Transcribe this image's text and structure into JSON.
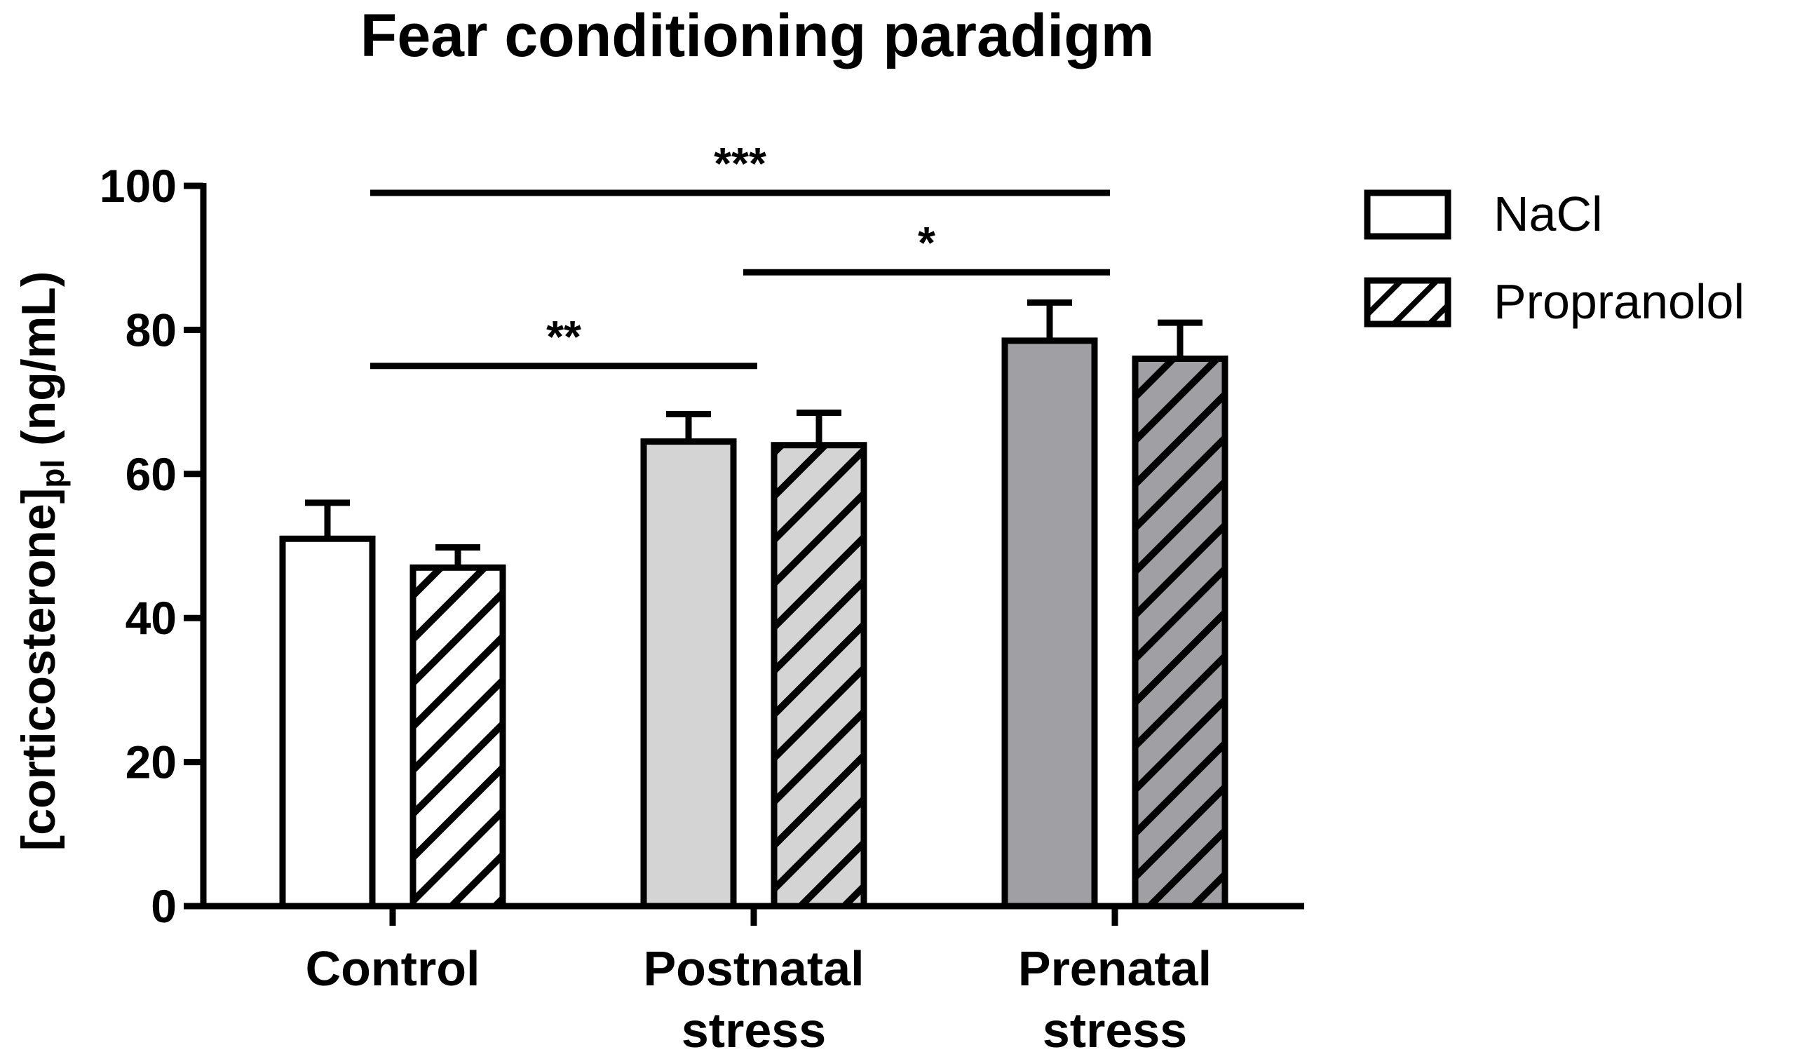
{
  "chart_data": {
    "type": "bar",
    "title": "Fear conditioning paradigm",
    "ylabel_main": "[corticosterone]",
    "ylabel_sub": "pl",
    "ylabel_unit": "(ng/mL)",
    "ylim": [
      0,
      100
    ],
    "yticks": [
      "0",
      "20",
      "40",
      "60",
      "80",
      "100"
    ],
    "categories": [
      {
        "lines": [
          "Control"
        ]
      },
      {
        "lines": [
          "Postnatal",
          "stress"
        ]
      },
      {
        "lines": [
          "Prenatal",
          "stress"
        ]
      }
    ],
    "category_colors": [
      "#ffffff",
      "#d4d4d4",
      "#a0a0a4"
    ],
    "series": [
      {
        "name": "NaCl",
        "pattern": "solid",
        "values": [
          51,
          64.5,
          78.5
        ],
        "errors": [
          5,
          3.8,
          5.3
        ]
      },
      {
        "name": "Propranolol",
        "pattern": "hatched",
        "values": [
          47,
          64,
          76
        ],
        "errors": [
          2.8,
          4.5,
          5
        ]
      }
    ],
    "significance": [
      {
        "label": "***",
        "from_category": 0,
        "to_category": 2,
        "level": 100
      },
      {
        "label": "*",
        "from_category": 1,
        "to_category": 2,
        "level": 88
      },
      {
        "label": "**",
        "from_category": 0,
        "to_category": 1,
        "level": 75
      }
    ],
    "legend_position": "top-right",
    "grid": false
  }
}
